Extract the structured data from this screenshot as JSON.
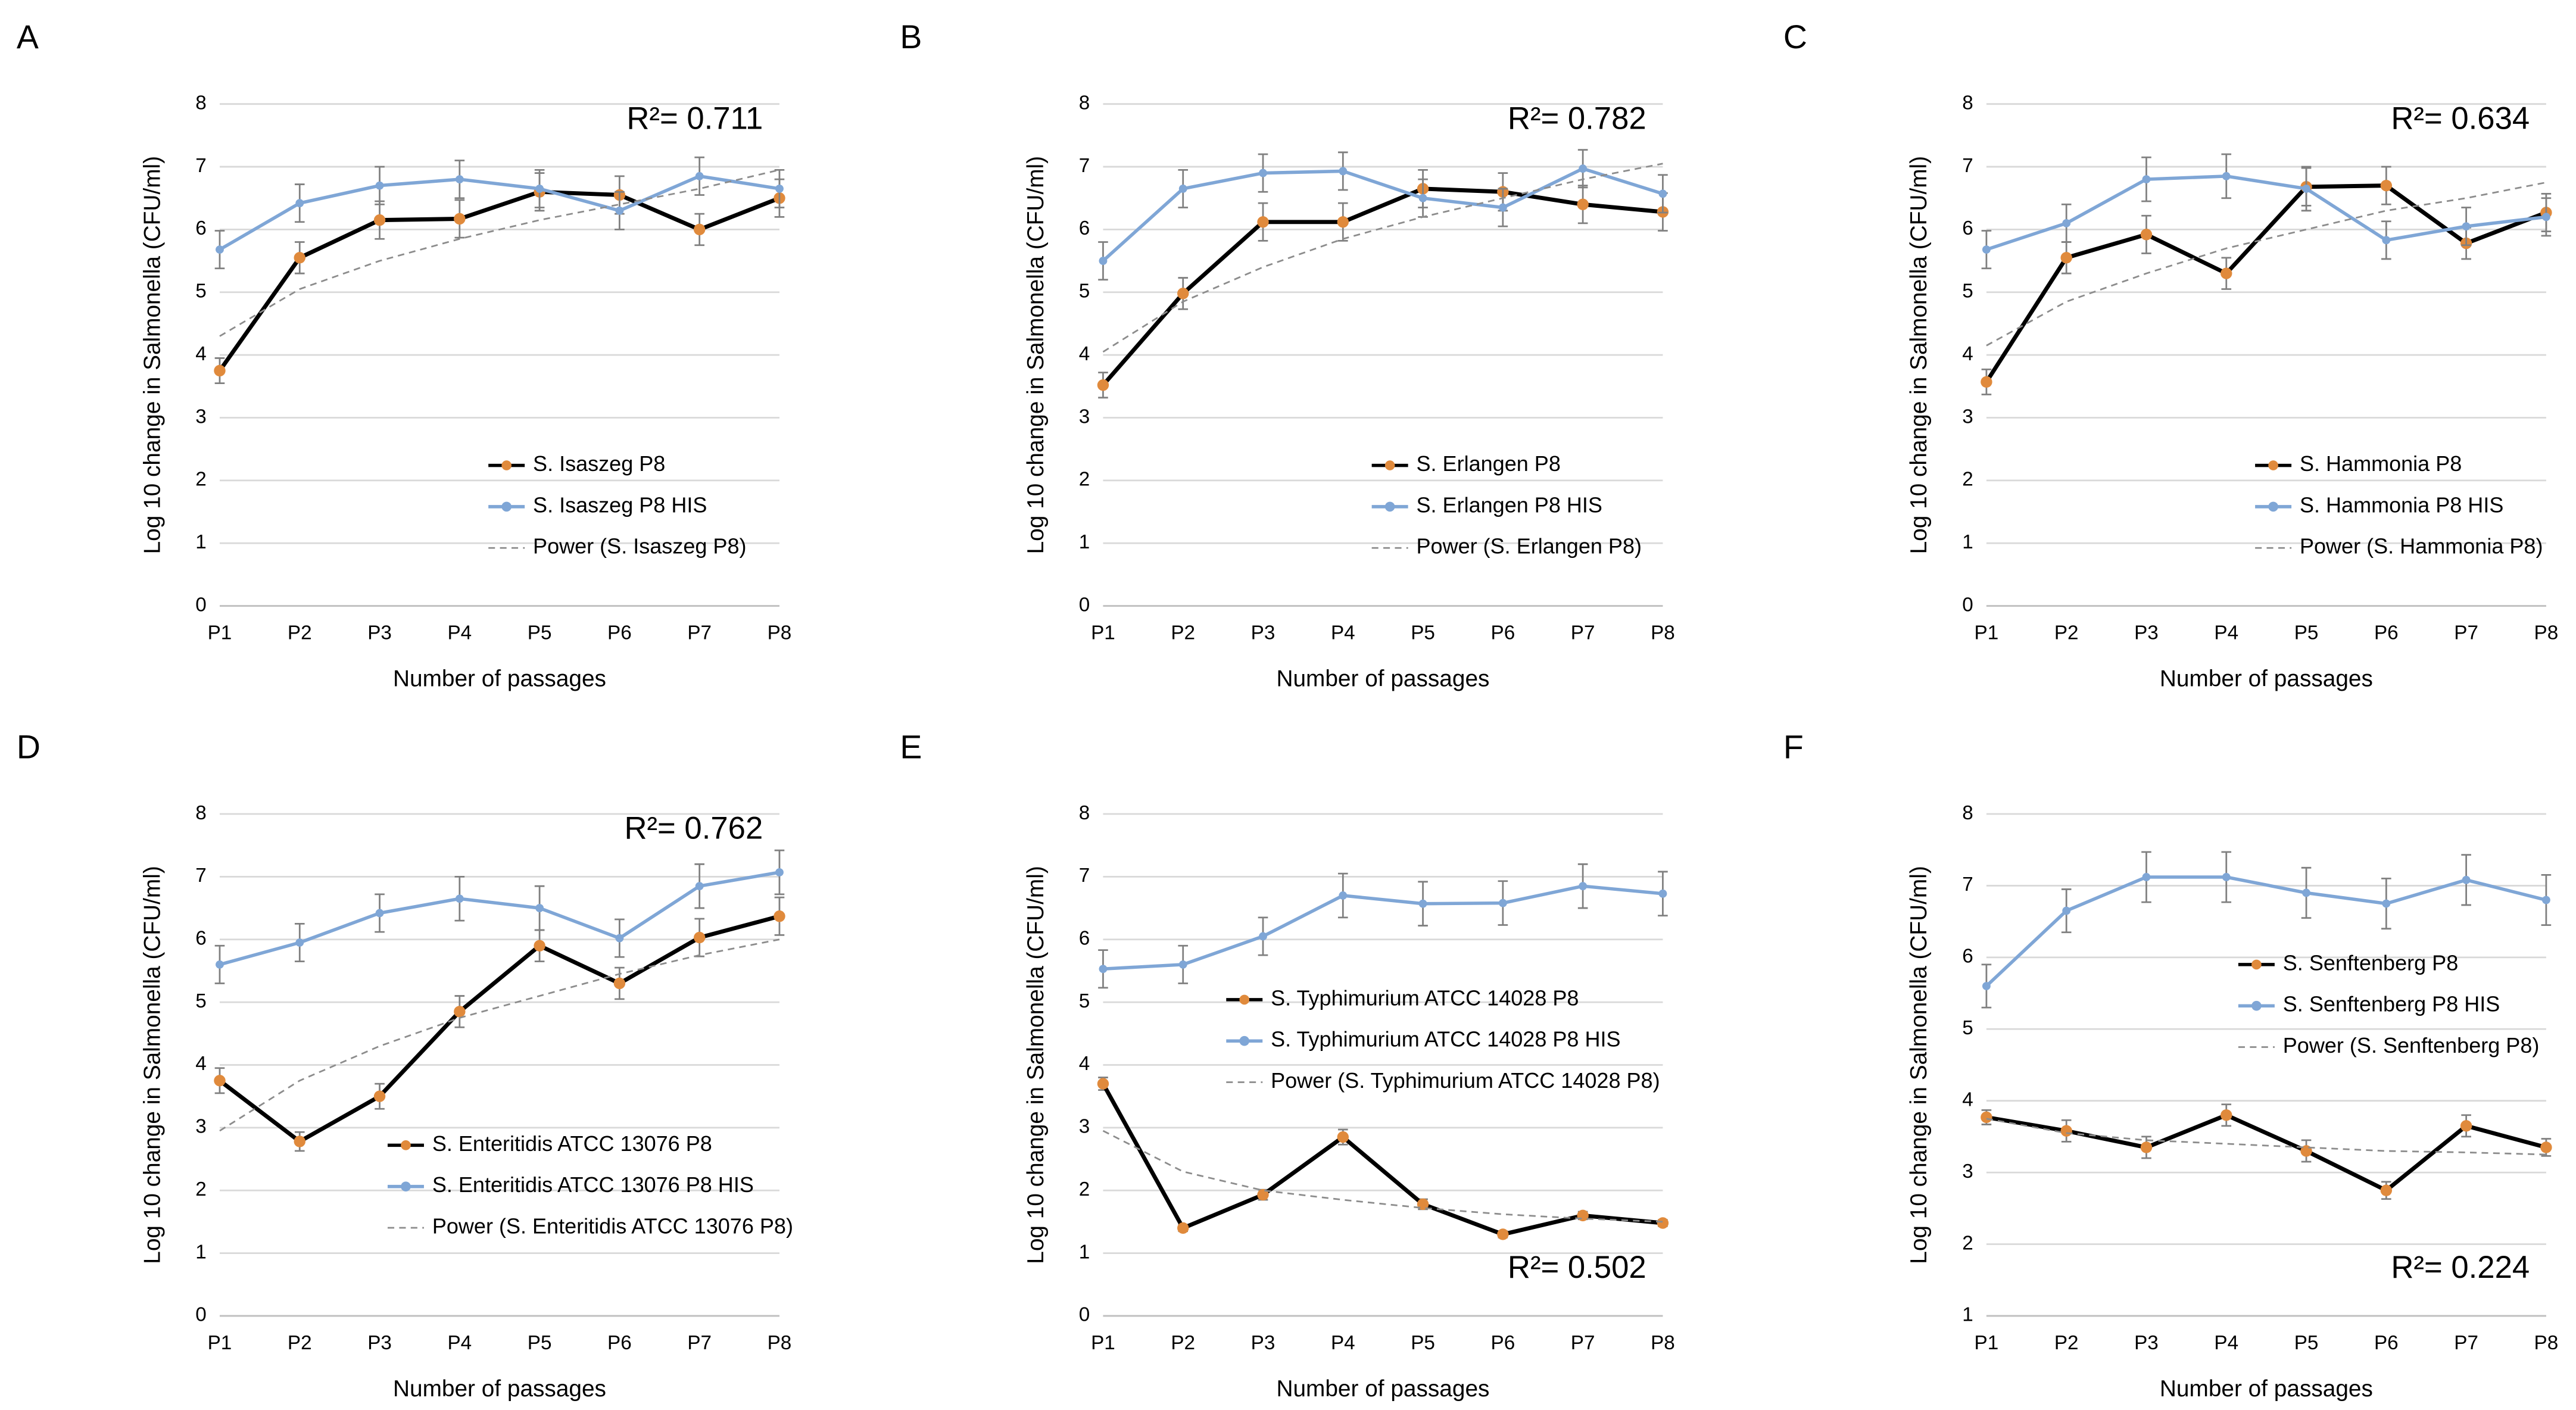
{
  "chart_data": [
    {
      "type": "line",
      "panel": "A",
      "annotation": "R²= 0.711",
      "annotation_position": "top-right",
      "y_label": "Log 10 change in Salmonella (CFU/ml)",
      "x_label": "Number of passages",
      "categories": [
        "P1",
        "P2",
        "P3",
        "P4",
        "P5",
        "P6",
        "P7",
        "P8"
      ],
      "ylim": [
        0,
        8
      ],
      "yticks": [
        0,
        1,
        2,
        3,
        4,
        5,
        6,
        7,
        8
      ],
      "grid": true,
      "legend": "lower-right",
      "series": [
        {
          "name": "S. Isaszeg P8",
          "color": "#000000",
          "marker_color": "#e08a3c",
          "values": [
            3.75,
            5.55,
            6.15,
            6.17,
            6.6,
            6.55,
            6.0,
            6.5
          ],
          "errors": [
            0.2,
            0.25,
            0.3,
            0.3,
            0.3,
            0.3,
            0.25,
            0.3
          ]
        },
        {
          "name": "S. Isaszeg P8 HIS",
          "color": "#7fa6d6",
          "marker_color": "#7fa6d6",
          "values": [
            5.68,
            6.42,
            6.7,
            6.8,
            6.65,
            6.3,
            6.85,
            6.65
          ],
          "errors": [
            0.3,
            0.3,
            0.3,
            0.3,
            0.3,
            0.3,
            0.3,
            0.3
          ]
        },
        {
          "name": "Power (S. Isaszeg P8)",
          "color": "#8c8c8c",
          "dashed": true,
          "values": [
            4.3,
            5.05,
            5.5,
            5.85,
            6.15,
            6.4,
            6.65,
            6.95
          ]
        }
      ]
    },
    {
      "type": "line",
      "panel": "B",
      "annotation": "R²= 0.782",
      "annotation_position": "top-right",
      "y_label": "Log 10 change in Salmonella (CFU/ml)",
      "x_label": "Number of passages",
      "categories": [
        "P1",
        "P2",
        "P3",
        "P4",
        "P5",
        "P6",
        "P7",
        "P8"
      ],
      "ylim": [
        0,
        8
      ],
      "yticks": [
        0,
        1,
        2,
        3,
        4,
        5,
        6,
        7,
        8
      ],
      "grid": true,
      "legend": "lower-right",
      "series": [
        {
          "name": "S. Erlangen P8",
          "color": "#000000",
          "marker_color": "#e08a3c",
          "values": [
            3.52,
            4.98,
            6.12,
            6.12,
            6.65,
            6.6,
            6.4,
            6.28
          ],
          "errors": [
            0.2,
            0.25,
            0.3,
            0.3,
            0.3,
            0.3,
            0.3,
            0.3
          ]
        },
        {
          "name": "S. Erlangen P8 HIS",
          "color": "#7fa6d6",
          "marker_color": "#7fa6d6",
          "values": [
            5.5,
            6.65,
            6.9,
            6.93,
            6.5,
            6.35,
            6.97,
            6.57
          ],
          "errors": [
            0.3,
            0.3,
            0.3,
            0.3,
            0.3,
            0.3,
            0.3,
            0.3
          ]
        },
        {
          "name": "Power (S. Erlangen P8)",
          "color": "#8c8c8c",
          "dashed": true,
          "values": [
            4.05,
            4.85,
            5.4,
            5.85,
            6.2,
            6.5,
            6.8,
            7.05
          ]
        }
      ]
    },
    {
      "type": "line",
      "panel": "C",
      "annotation": "R²= 0.634",
      "annotation_position": "top-right",
      "y_label": "Log 10 change in Salmonella (CFU/ml)",
      "x_label": "Number of passages",
      "categories": [
        "P1",
        "P2",
        "P3",
        "P4",
        "P5",
        "P6",
        "P7",
        "P8"
      ],
      "ylim": [
        0,
        8
      ],
      "yticks": [
        0,
        1,
        2,
        3,
        4,
        5,
        6,
        7,
        8
      ],
      "grid": true,
      "legend": "lower-right",
      "series": [
        {
          "name": "S. Hammonia P8",
          "color": "#000000",
          "marker_color": "#e08a3c",
          "values": [
            3.57,
            5.55,
            5.92,
            5.3,
            6.68,
            6.7,
            5.78,
            6.27
          ],
          "errors": [
            0.2,
            0.25,
            0.3,
            0.25,
            0.3,
            0.3,
            0.25,
            0.3
          ]
        },
        {
          "name": "S. Hammonia P8 HIS",
          "color": "#7fa6d6",
          "marker_color": "#7fa6d6",
          "values": [
            5.68,
            6.1,
            6.8,
            6.85,
            6.65,
            5.83,
            6.05,
            6.2
          ],
          "errors": [
            0.3,
            0.3,
            0.35,
            0.35,
            0.35,
            0.3,
            0.3,
            0.3
          ]
        },
        {
          "name": "Power (S. Hammonia P8)",
          "color": "#8c8c8c",
          "dashed": true,
          "values": [
            4.15,
            4.85,
            5.3,
            5.7,
            6.0,
            6.3,
            6.5,
            6.75
          ]
        }
      ]
    },
    {
      "type": "line",
      "panel": "D",
      "annotation": "R²= 0.762",
      "annotation_position": "top-right",
      "y_label": "Log 10 change in Salmonella (CFU/ml)",
      "x_label": "Number of passages",
      "categories": [
        "P1",
        "P2",
        "P3",
        "P4",
        "P5",
        "P6",
        "P7",
        "P8"
      ],
      "ylim": [
        0,
        8
      ],
      "yticks": [
        0,
        1,
        2,
        3,
        4,
        5,
        6,
        7,
        8
      ],
      "grid": true,
      "legend": "lower-center",
      "series": [
        {
          "name": "S. Enteritidis ATCC 13076 P8",
          "color": "#000000",
          "marker_color": "#e08a3c",
          "values": [
            3.75,
            2.78,
            3.5,
            4.85,
            5.9,
            5.3,
            6.03,
            6.37
          ],
          "errors": [
            0.2,
            0.15,
            0.2,
            0.25,
            0.25,
            0.25,
            0.3,
            0.3
          ]
        },
        {
          "name": "S. Enteritidis ATCC 13076 P8 HIS",
          "color": "#7fa6d6",
          "marker_color": "#7fa6d6",
          "values": [
            5.6,
            5.95,
            6.42,
            6.65,
            6.5,
            6.02,
            6.85,
            7.07
          ],
          "errors": [
            0.3,
            0.3,
            0.3,
            0.35,
            0.35,
            0.3,
            0.35,
            0.35
          ]
        },
        {
          "name": "Power (S. Enteritidis ATCC 13076 P8)",
          "color": "#8c8c8c",
          "dashed": true,
          "values": [
            2.95,
            3.75,
            4.3,
            4.75,
            5.1,
            5.45,
            5.75,
            6.0
          ]
        }
      ]
    },
    {
      "type": "line",
      "panel": "E",
      "annotation": "R²= 0.502",
      "annotation_position": "bottom-right",
      "y_label": "Log 10 change in Salmonella (CFU/ml)",
      "x_label": "Number of passages",
      "categories": [
        "P1",
        "P2",
        "P3",
        "P4",
        "P5",
        "P6",
        "P7",
        "P8"
      ],
      "ylim": [
        0,
        8
      ],
      "yticks": [
        0,
        1,
        2,
        3,
        4,
        5,
        6,
        7,
        8
      ],
      "grid": true,
      "legend": "center",
      "series": [
        {
          "name": "S. Typhimurium ATCC 14028 P8",
          "color": "#000000",
          "marker_color": "#e08a3c",
          "values": [
            3.7,
            1.4,
            1.93,
            2.85,
            1.78,
            1.3,
            1.6,
            1.48
          ],
          "errors": [
            0.1,
            0.05,
            0.08,
            0.12,
            0.08,
            0.05,
            0.06,
            0.05
          ]
        },
        {
          "name": "S. Typhimurium ATCC 14028 P8 HIS",
          "color": "#7fa6d6",
          "marker_color": "#7fa6d6",
          "values": [
            5.53,
            5.6,
            6.05,
            6.7,
            6.57,
            6.58,
            6.85,
            6.73
          ],
          "errors": [
            0.3,
            0.3,
            0.3,
            0.35,
            0.35,
            0.35,
            0.35,
            0.35
          ]
        },
        {
          "name": "Power (S. Typhimurium ATCC 14028 P8)",
          "color": "#8c8c8c",
          "dashed": true,
          "values": [
            2.95,
            2.3,
            2.0,
            1.85,
            1.72,
            1.62,
            1.55,
            1.5
          ]
        }
      ]
    },
    {
      "type": "line",
      "panel": "F",
      "annotation": "R²= 0.224",
      "annotation_position": "bottom-right",
      "y_label": "Log 10 change in Salmonella (CFU/ml)",
      "x_label": "Number of passages",
      "categories": [
        "P1",
        "P2",
        "P3",
        "P4",
        "P5",
        "P6",
        "P7",
        "P8"
      ],
      "ylim": [
        1,
        8
      ],
      "yticks": [
        1,
        2,
        3,
        4,
        5,
        6,
        7,
        8
      ],
      "grid": true,
      "legend": "center-right",
      "series": [
        {
          "name": "S. Senftenberg P8",
          "color": "#000000",
          "marker_color": "#e08a3c",
          "values": [
            3.77,
            3.58,
            3.35,
            3.8,
            3.3,
            2.75,
            3.65,
            3.35
          ],
          "errors": [
            0.1,
            0.15,
            0.15,
            0.15,
            0.15,
            0.12,
            0.15,
            0.12
          ]
        },
        {
          "name": "S. Senftenberg P8 HIS",
          "color": "#7fa6d6",
          "marker_color": "#7fa6d6",
          "values": [
            5.6,
            6.65,
            7.12,
            7.12,
            6.9,
            6.75,
            7.08,
            6.8
          ],
          "errors": [
            0.3,
            0.3,
            0.35,
            0.35,
            0.35,
            0.35,
            0.35,
            0.35
          ]
        },
        {
          "name": "Power (S. Senftenberg P8)",
          "color": "#8c8c8c",
          "dashed": true,
          "values": [
            3.75,
            3.55,
            3.45,
            3.4,
            3.35,
            3.3,
            3.28,
            3.25
          ]
        }
      ]
    }
  ]
}
